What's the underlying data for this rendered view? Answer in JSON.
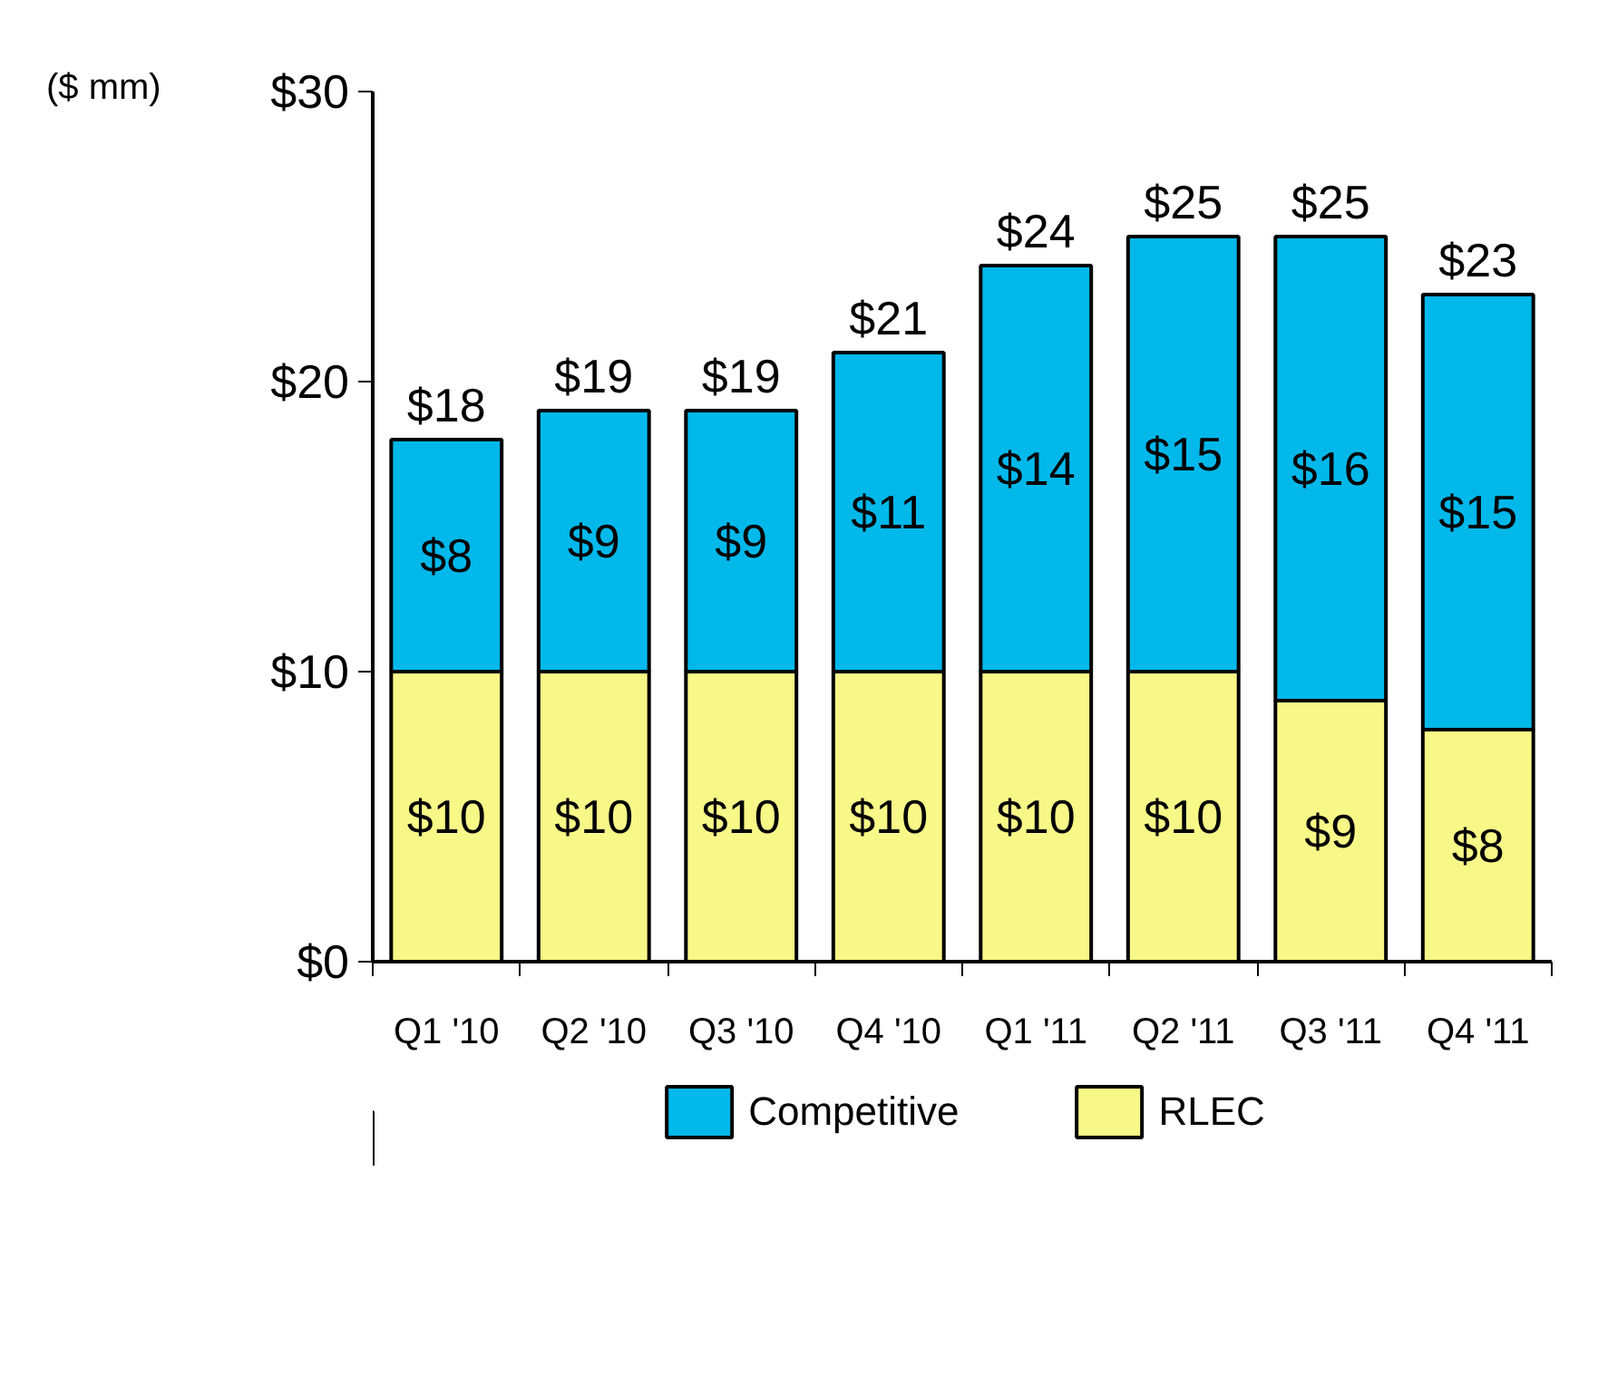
{
  "chart_data": {
    "type": "bar",
    "stacked": true,
    "ylabel": "($ mm)",
    "categories": [
      "Q1 '10",
      "Q2 '10",
      "Q3 '10",
      "Q4 '10",
      "Q1 '11",
      "Q2 '11",
      "Q3 '11",
      "Q4 '11"
    ],
    "series": [
      {
        "name": "RLEC",
        "color": "#f8f888",
        "values": [
          10,
          10,
          10,
          10,
          10,
          10,
          9,
          8
        ],
        "value_labels": [
          "$10",
          "$10",
          "$10",
          "$10",
          "$10",
          "$10",
          "$9",
          "$8"
        ]
      },
      {
        "name": "Competitive",
        "color": "#00b8ea",
        "values": [
          8,
          9,
          9,
          11,
          14,
          15,
          16,
          15
        ],
        "value_labels": [
          "$8",
          "$9",
          "$9",
          "$11",
          "$14",
          "$15",
          "$16",
          "$15"
        ]
      }
    ],
    "totals": [
      "$18",
      "$19",
      "$19",
      "$21",
      "$24",
      "$25",
      "$25",
      "$23"
    ],
    "ylim": [
      0,
      30
    ],
    "yticks": [
      {
        "value": 0,
        "label": "$0"
      },
      {
        "value": 10,
        "label": "$10"
      },
      {
        "value": 20,
        "label": "$20"
      },
      {
        "value": 30,
        "label": "$30"
      }
    ],
    "grid": false,
    "legend": "bottom"
  }
}
